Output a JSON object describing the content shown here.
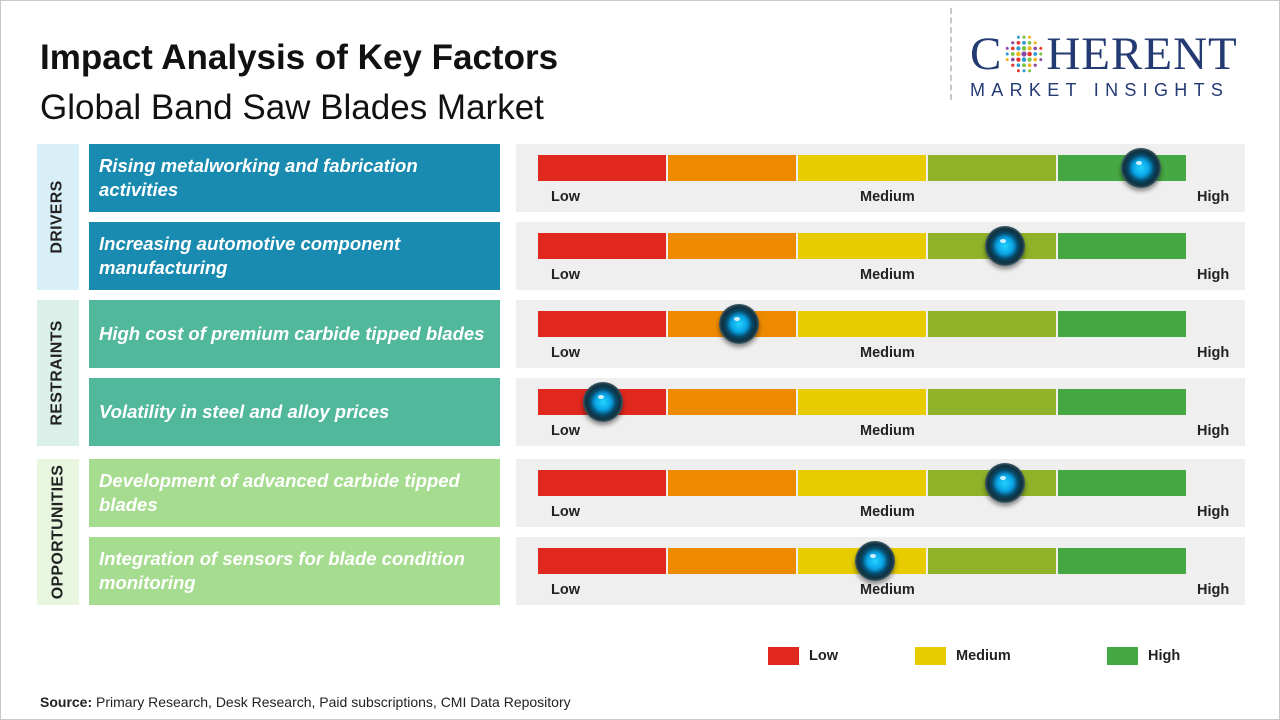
{
  "header": {
    "title": "Impact Analysis of Key Factors",
    "subtitle": "Global Band Saw Blades Market"
  },
  "logo": {
    "word_left": "C",
    "word_right": "HERENT",
    "tagline": "MARKET INSIGHTS"
  },
  "colors": {
    "drivers": "#1a8bb0",
    "restraints": "#52b89b",
    "opportunities": "#a6dc8f",
    "drivers_band": "#d9eff7",
    "restraints_band": "#dcf0ea",
    "opportunities_band": "#e8f6e0",
    "scale": [
      "#e0281f",
      "#ee8a00",
      "#e6cc00",
      "#8fb228",
      "#46a843"
    ]
  },
  "chart_data": {
    "type": "impact-gauge",
    "title": "Impact Analysis of Key Factors",
    "subtitle": "Global Band Saw Blades Market",
    "scale": {
      "low_label": "Low",
      "medium_label": "Medium",
      "high_label": "High",
      "min": 0,
      "max": 1
    },
    "categories": [
      {
        "name": "DRIVERS",
        "factors": [
          {
            "label": "Rising metalworking and fabrication activities",
            "impact": 0.93
          },
          {
            "label": "Increasing automotive component manufacturing",
            "impact": 0.72
          }
        ]
      },
      {
        "name": "RESTRAINTS",
        "factors": [
          {
            "label": "High cost of premium carbide tipped blades",
            "impact": 0.31
          },
          {
            "label": "Volatility in steel and alloy prices",
            "impact": 0.1
          }
        ]
      },
      {
        "name": "OPPORTUNITIES",
        "factors": [
          {
            "label": "Development of advanced carbide tipped blades",
            "impact": 0.72
          },
          {
            "label": "Integration of sensors for blade condition monitoring",
            "impact": 0.52
          }
        ]
      }
    ],
    "legend": [
      {
        "label": "Low",
        "color": "#e0281f"
      },
      {
        "label": "Medium",
        "color": "#e6cc00"
      },
      {
        "label": "High",
        "color": "#46a843"
      }
    ]
  },
  "footer": {
    "source_label": "Source:",
    "source_text": "Primary Research, Desk Research, Paid subscriptions, CMI Data Repository"
  }
}
